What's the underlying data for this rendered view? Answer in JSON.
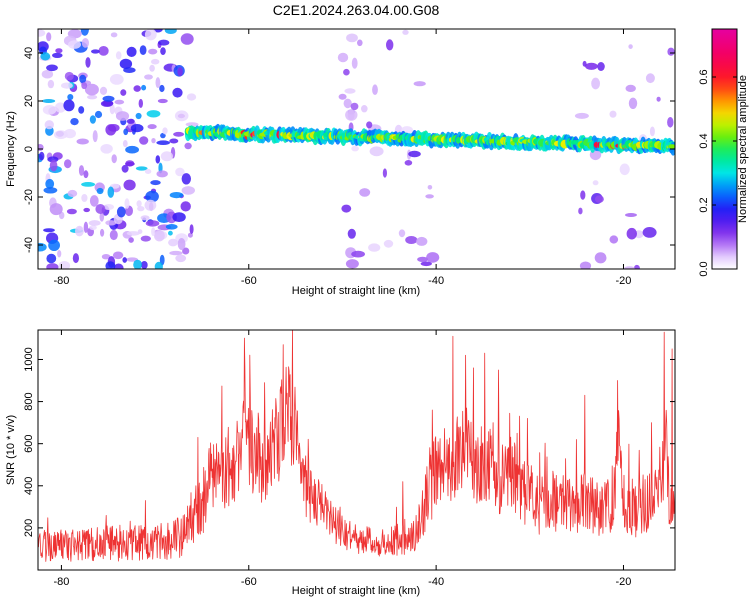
{
  "title": "C2E1.2024.263.04.00.G08",
  "chart_data": [
    {
      "type": "heatmap",
      "xlabel": "Height of straight line (km)",
      "ylabel": "Frequency (Hz)",
      "xlim": [
        -82.5,
        -14.5
      ],
      "ylim": [
        -50,
        50
      ],
      "x_ticks": [
        -80,
        -60,
        -40,
        -20
      ],
      "y_ticks": [
        -40,
        -20,
        0,
        20,
        40
      ],
      "colorbar": {
        "label": "Normalized spectral amplitude",
        "range": [
          0,
          0.75
        ],
        "ticks": [
          0.0,
          0.2,
          0.4,
          0.6
        ],
        "tick_labels": [
          "0.0",
          "0.2",
          "0.4",
          "0.6"
        ]
      },
      "features": [
        {
          "kind": "noise",
          "x": [
            -82.5,
            -66
          ],
          "y": [
            -50,
            50
          ],
          "level": 0.12
        },
        {
          "kind": "noise",
          "x": [
            -50,
            -43
          ],
          "y": [
            -50,
            50
          ],
          "level": 0.04
        },
        {
          "kind": "noise",
          "x": [
            -43,
            -40
          ],
          "y": [
            -50,
            50
          ],
          "level": 0.03
        },
        {
          "kind": "noise",
          "x": [
            -25,
            -22
          ],
          "y": [
            -50,
            50
          ],
          "level": 0.04
        },
        {
          "kind": "noise",
          "x": [
            -22,
            -14.5
          ],
          "y": [
            -50,
            50
          ],
          "level": 0.02
        },
        {
          "kind": "band",
          "x_start": -66.5,
          "x_end": -14.5,
          "freq_start": 7,
          "freq_end": 1,
          "width": 4.5
        }
      ]
    },
    {
      "type": "line",
      "xlabel": "Height of straight line (km)",
      "ylabel": "SNR (10 * v/v)",
      "xlim": [
        -82.5,
        -14.5
      ],
      "ylim": [
        0,
        1140
      ],
      "x_ticks": [
        -80,
        -60,
        -40,
        -20
      ],
      "y_ticks": [
        200,
        400,
        600,
        800,
        1000
      ],
      "color": "#ee3333",
      "envelope": {
        "x": [
          -82.5,
          -80,
          -75,
          -70,
          -67.5,
          -66,
          -65,
          -64,
          -63,
          -62,
          -61,
          -60,
          -59,
          -58,
          -57,
          -56,
          -55,
          -54,
          -53,
          -52,
          -51,
          -50,
          -48,
          -46,
          -44,
          -42,
          -41,
          -40,
          -39,
          -38,
          -37,
          -36,
          -35,
          -34,
          -33,
          -32,
          -31,
          -30,
          -29,
          -28,
          -27,
          -26,
          -25,
          -24,
          -23,
          -22,
          -21,
          -20.5,
          -20,
          -19,
          -18,
          -17,
          -16,
          -15.5,
          -15,
          -14.5
        ],
        "y": [
          110,
          120,
          125,
          135,
          150,
          240,
          330,
          450,
          470,
          500,
          560,
          620,
          540,
          500,
          620,
          780,
          640,
          400,
          340,
          280,
          220,
          180,
          140,
          130,
          140,
          190,
          340,
          470,
          450,
          520,
          610,
          500,
          540,
          520,
          430,
          480,
          380,
          360,
          300,
          330,
          320,
          300,
          310,
          340,
          300,
          280,
          360,
          680,
          340,
          290,
          310,
          340,
          370,
          640,
          250,
          460
        ],
        "noise": [
          80,
          80,
          85,
          90,
          100,
          120,
          170,
          180,
          190,
          200,
          210,
          230,
          210,
          200,
          230,
          240,
          230,
          160,
          140,
          120,
          100,
          80,
          70,
          70,
          80,
          100,
          160,
          190,
          180,
          200,
          220,
          200,
          210,
          200,
          180,
          190,
          160,
          150,
          140,
          150,
          150,
          140,
          140,
          150,
          140,
          140,
          160,
          120,
          150,
          140,
          140,
          150,
          160,
          200,
          130,
          180
        ]
      },
      "spikes": [
        {
          "x": -71.0,
          "y": 330
        },
        {
          "x": -65.4,
          "y": 630
        },
        {
          "x": -60.4,
          "y": 960
        },
        {
          "x": -58.3,
          "y": 890
        },
        {
          "x": -56.3,
          "y": 1070
        },
        {
          "x": -55.3,
          "y": 1150
        },
        {
          "x": -43.5,
          "y": 420
        },
        {
          "x": -40.4,
          "y": 760
        },
        {
          "x": -38.2,
          "y": 1110
        },
        {
          "x": -36.8,
          "y": 1020
        },
        {
          "x": -36.0,
          "y": 960
        },
        {
          "x": -34.8,
          "y": 1030
        },
        {
          "x": -33.3,
          "y": 950
        },
        {
          "x": -30.2,
          "y": 720
        },
        {
          "x": -25.0,
          "y": 620
        },
        {
          "x": -24.1,
          "y": 830
        },
        {
          "x": -20.6,
          "y": 900
        },
        {
          "x": -17.0,
          "y": 700
        },
        {
          "x": -15.6,
          "y": 1130
        },
        {
          "x": -14.8,
          "y": 1050
        }
      ]
    }
  ]
}
